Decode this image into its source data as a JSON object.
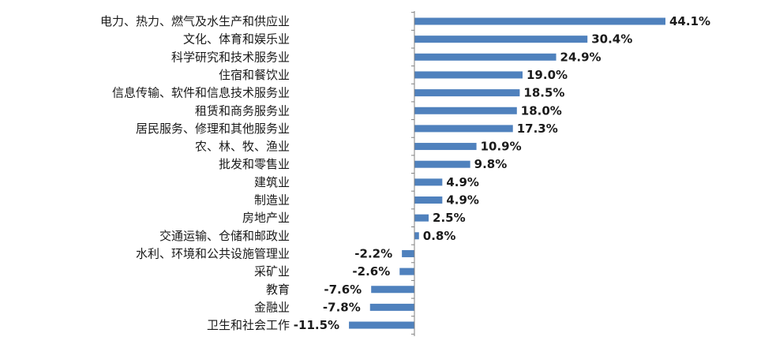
{
  "colors": {
    "bar": "#4F81BD",
    "axis": "#808080",
    "text": "#1a1a1a",
    "background": "#ffffff"
  },
  "chart_data": {
    "type": "bar",
    "orientation": "horizontal",
    "title": "",
    "xlabel": "",
    "ylabel": "",
    "grid": false,
    "legend": "none",
    "xlim": [
      -11.5,
      44.1
    ],
    "categories": [
      "电力、热力、燃气及水生产和供应业",
      "文化、体育和娱乐业",
      "科学研究和技术服务业",
      "住宿和餐饮业",
      "信息传输、软件和信息技术服务业",
      "租赁和商务服务业",
      "居民服务、修理和其他服务业",
      "农、林、牧、渔业",
      "批发和零售业",
      "建筑业",
      "制造业",
      "房地产业",
      "交通运输、仓储和邮政业",
      "水利、环境和公共设施管理业",
      "采矿业",
      "教育",
      "金融业",
      "卫生和社会工作"
    ],
    "values": [
      44.1,
      30.4,
      24.9,
      19.0,
      18.5,
      18.0,
      17.3,
      10.9,
      9.8,
      4.9,
      4.9,
      2.5,
      0.8,
      -2.2,
      -2.6,
      -7.6,
      -7.8,
      -11.5
    ],
    "value_labels": [
      "44.1%",
      "30.4%",
      "24.9%",
      "19.0%",
      "18.5%",
      "18.0%",
      "17.3%",
      "10.9%",
      "9.8%",
      "4.9%",
      "4.9%",
      "2.5%",
      "0.8%",
      "-2.2%",
      "-2.6%",
      "-7.6%",
      "-7.8%",
      "-11.5%"
    ]
  }
}
